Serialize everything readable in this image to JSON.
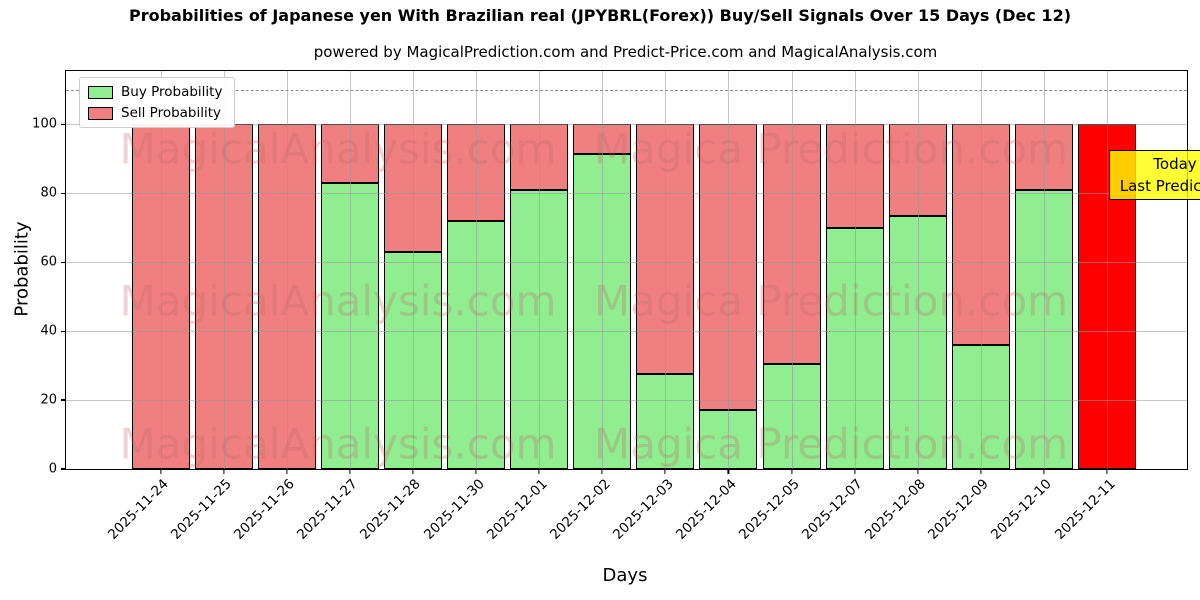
{
  "header": {
    "title": "Probabilities of Japanese yen With Brazilian real (JPYBRL(Forex)) Buy/Sell Signals Over 15 Days (Dec 12)",
    "subtitle": "powered by MagicalPrediction.com and Predict-Price.com and MagicalAnalysis.com"
  },
  "legend": {
    "items": [
      {
        "label": "Buy Probability",
        "color": "#90ee90"
      },
      {
        "label": "Sell Probability",
        "color": "#f08080"
      }
    ]
  },
  "annotation": {
    "line1": "Today",
    "line2": "Last Prediction",
    "bg_color": "#ffff00"
  },
  "watermarks": {
    "left_text": "MagicalAnalysis.com",
    "right_text": "Magica Prediction.com"
  },
  "axes": {
    "xlabel": "Days",
    "ylabel": "Probability",
    "yticks": [
      0,
      20,
      40,
      60,
      80,
      100
    ]
  },
  "chart_data": {
    "type": "bar",
    "stacked": true,
    "title": "Probabilities of Japanese yen With Brazilian real (JPYBRL(Forex)) Buy/Sell Signals Over 15 Days (Dec 12)",
    "xlabel": "Days",
    "ylabel": "Probability",
    "ylim": [
      0,
      115.5
    ],
    "grid": true,
    "grid_above_bars": true,
    "dashed_line_y": 110,
    "legend_position": "upper left",
    "categories": [
      "2025-11-24",
      "2025-11-25",
      "2025-11-26",
      "2025-11-27",
      "2025-11-28",
      "2025-11-30",
      "2025-12-01",
      "2025-12-02",
      "2025-12-03",
      "2025-12-04",
      "2025-12-05",
      "2025-12-07",
      "2025-12-08",
      "2025-12-09",
      "2025-12-10",
      "2025-12-11"
    ],
    "series": [
      {
        "name": "Buy Probability",
        "color": "#90ee90",
        "values": [
          0,
          0,
          0,
          83,
          63,
          72,
          81,
          91.5,
          27.5,
          17,
          30.5,
          70,
          73.5,
          36,
          81,
          0
        ]
      },
      {
        "name": "Sell Probability",
        "color": "#f08080",
        "values": [
          100,
          100,
          100,
          17,
          37,
          28,
          19,
          8.5,
          72.5,
          83,
          69.5,
          30,
          26.5,
          64,
          19,
          100
        ]
      }
    ],
    "bar_edge_color": "#000000",
    "last_bar_sell_color": "#ff0000",
    "last_bar_note": "Today / Last Prediction"
  }
}
